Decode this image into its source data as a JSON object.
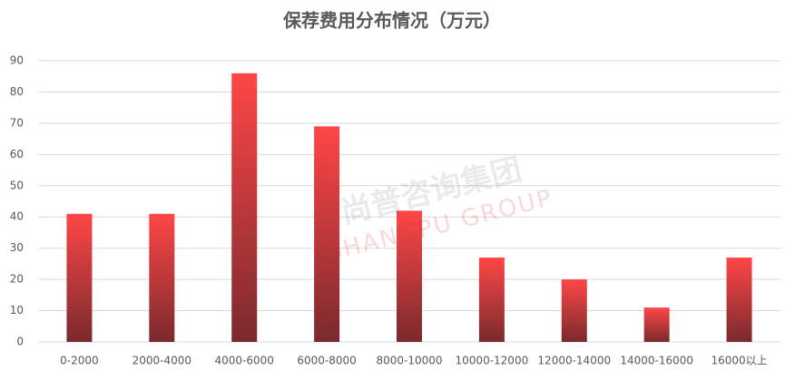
{
  "chart_data": {
    "type": "bar",
    "title": "保荐费用分布情况（万元）",
    "categories": [
      "0-2000",
      "2000-4000",
      "4000-6000",
      "6000-8000",
      "8000-10000",
      "10000-12000",
      "12000-14000",
      "14000-16000",
      "16000以上"
    ],
    "values": [
      41,
      41,
      86,
      69,
      42,
      27,
      20,
      11,
      27
    ],
    "color": "#ff4646",
    "gradient_end": "#7a2a2e",
    "ylim": [
      0,
      90
    ],
    "yticks": [
      0,
      10,
      20,
      30,
      40,
      50,
      60,
      70,
      80,
      90
    ],
    "grid": true,
    "watermark": {
      "text": "尚普咨询集团",
      "subtext": "SHANGPU GROUP"
    }
  }
}
